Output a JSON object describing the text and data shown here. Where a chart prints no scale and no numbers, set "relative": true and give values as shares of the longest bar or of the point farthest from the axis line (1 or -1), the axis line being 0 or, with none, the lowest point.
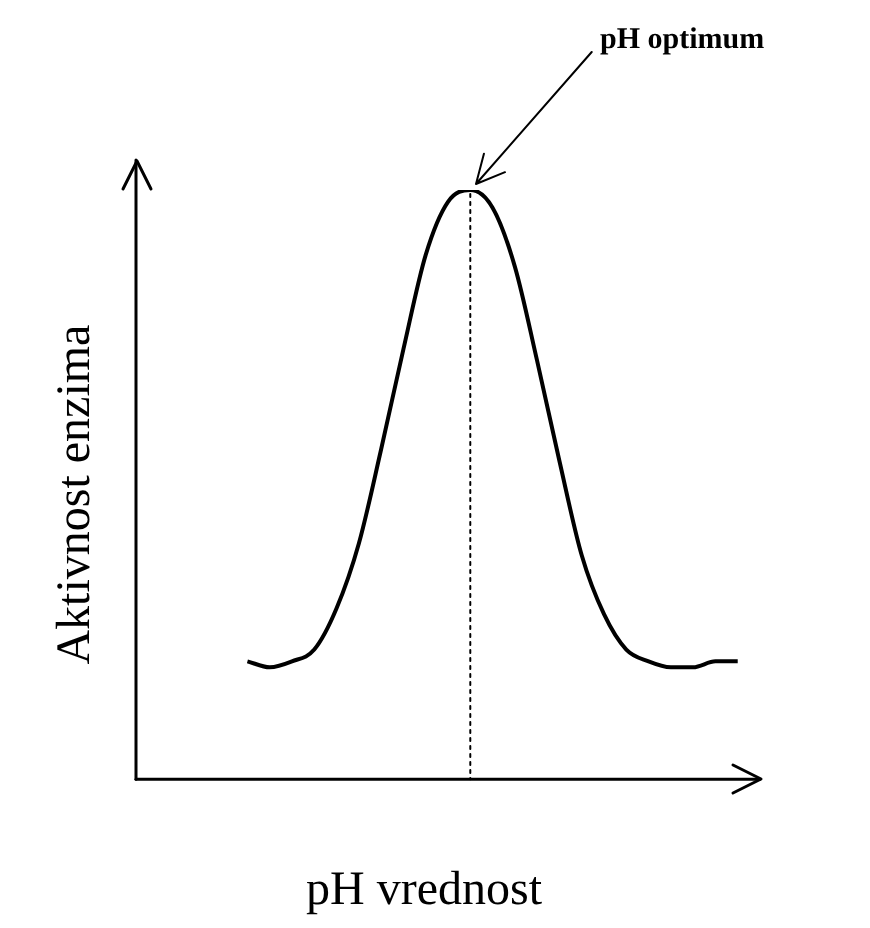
{
  "chart_data": {
    "type": "line",
    "relative": true,
    "xlabel": "pH vrednost",
    "ylabel": "Aktivnost enzima",
    "annotations": [
      "pH optimum"
    ],
    "marker": "none",
    "line_style": "solid",
    "grid": false,
    "legend": false,
    "categories": [
      null,
      null,
      null,
      null,
      null,
      null,
      null,
      null,
      null,
      null,
      null,
      null,
      null,
      null,
      null,
      null,
      null,
      null,
      null,
      null,
      null,
      null,
      null,
      null,
      null,
      null,
      null,
      null,
      null
    ],
    "series": [
      {
        "color": "#000000",
        "values": [
          null,
          null,
          null,
          null,
          null,
          0.2,
          0.19,
          0.2,
          0.22,
          0.29,
          0.4,
          0.56,
          0.73,
          0.89,
          0.98,
          1,
          0.97,
          0.87,
          0.71,
          0.54,
          0.38,
          0.28,
          0.22,
          0.2,
          0.19,
          0.19,
          0.2,
          0.2,
          null
        ]
      }
    ]
  }
}
